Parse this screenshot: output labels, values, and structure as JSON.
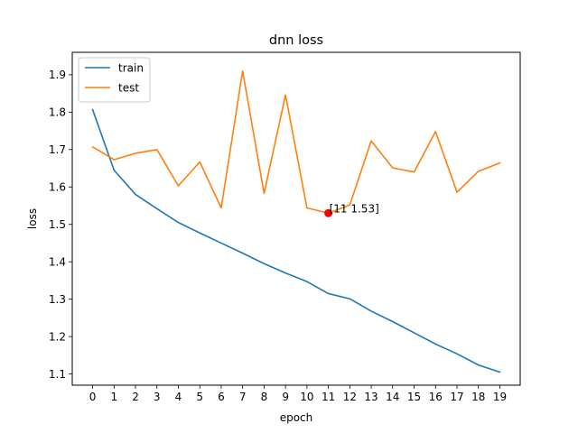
{
  "chart_data": {
    "type": "line",
    "title": "dnn loss",
    "xlabel": "epoch",
    "ylabel": "loss",
    "x": [
      0,
      1,
      2,
      3,
      4,
      5,
      6,
      7,
      8,
      9,
      10,
      11,
      12,
      13,
      14,
      15,
      16,
      17,
      18,
      19
    ],
    "xticks": [
      "0",
      "1",
      "2",
      "3",
      "4",
      "5",
      "6",
      "7",
      "8",
      "9",
      "10",
      "11",
      "12",
      "13",
      "14",
      "15",
      "16",
      "17",
      "18",
      "19"
    ],
    "yticks": [
      "1.1",
      "1.2",
      "1.3",
      "1.4",
      "1.5",
      "1.6",
      "1.7",
      "1.8",
      "1.9"
    ],
    "xlim": [
      -0.95,
      19.95
    ],
    "ylim": [
      1.07,
      1.96
    ],
    "grid": false,
    "legend_position": "upper-left",
    "series": [
      {
        "name": "train",
        "color": "#1f77b4",
        "values": [
          1.807,
          1.645,
          1.58,
          1.542,
          1.505,
          1.477,
          1.45,
          1.423,
          1.395,
          1.37,
          1.347,
          1.315,
          1.301,
          1.268,
          1.24,
          1.21,
          1.18,
          1.154,
          1.124,
          1.105
        ]
      },
      {
        "name": "test",
        "color": "#ff7f0e",
        "values": [
          1.707,
          1.673,
          1.69,
          1.7,
          1.603,
          1.667,
          1.544,
          1.91,
          1.583,
          1.846,
          1.544,
          1.53,
          1.552,
          1.723,
          1.651,
          1.64,
          1.748,
          1.586,
          1.642,
          1.664
        ]
      }
    ],
    "annotation": {
      "x": 11,
      "y": 1.53,
      "text": "[11 1.53]",
      "color": "#ff0000"
    }
  }
}
